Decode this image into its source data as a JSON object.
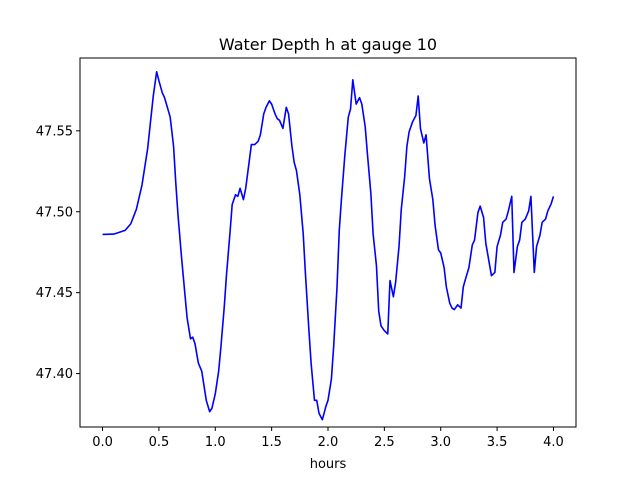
{
  "chart_data": {
    "type": "line",
    "title": "Water Depth h at gauge 10",
    "xlabel": "hours",
    "ylabel": "",
    "xlim": [
      -0.2,
      4.2
    ],
    "ylim": [
      47.367,
      47.595
    ],
    "xticks": [
      0.0,
      0.5,
      1.0,
      1.5,
      2.0,
      2.5,
      3.0,
      3.5,
      4.0
    ],
    "xtick_labels": [
      "0.0",
      "0.5",
      "1.0",
      "1.5",
      "2.0",
      "2.5",
      "3.0",
      "3.5",
      "4.0"
    ],
    "yticks": [
      47.4,
      47.45,
      47.5,
      47.55
    ],
    "ytick_labels": [
      "47.40",
      "47.45",
      "47.50",
      "47.55"
    ],
    "grid": false,
    "series": [
      {
        "color": "#0000ff",
        "x": [
          0.0,
          0.1,
          0.2,
          0.25,
          0.3,
          0.35,
          0.4,
          0.45,
          0.48,
          0.5,
          0.53,
          0.55,
          0.6,
          0.63,
          0.65,
          0.67,
          0.7,
          0.73,
          0.75,
          0.78,
          0.8,
          0.82,
          0.85,
          0.88,
          0.9,
          0.92,
          0.95,
          0.97,
          1.0,
          1.03,
          1.05,
          1.08,
          1.1,
          1.13,
          1.15,
          1.18,
          1.2,
          1.22,
          1.25,
          1.27,
          1.3,
          1.32,
          1.35,
          1.38,
          1.4,
          1.43,
          1.45,
          1.48,
          1.5,
          1.53,
          1.55,
          1.57,
          1.6,
          1.63,
          1.65,
          1.68,
          1.7,
          1.72,
          1.75,
          1.78,
          1.8,
          1.83,
          1.85,
          1.88,
          1.9,
          1.92,
          1.95,
          1.98,
          2.0,
          2.03,
          2.05,
          2.08,
          2.1,
          2.12,
          2.15,
          2.18,
          2.2,
          2.22,
          2.25,
          2.28,
          2.3,
          2.33,
          2.35,
          2.38,
          2.4,
          2.43,
          2.45,
          2.47,
          2.5,
          2.53,
          2.55,
          2.58,
          2.6,
          2.63,
          2.65,
          2.68,
          2.7,
          2.72,
          2.75,
          2.78,
          2.8,
          2.82,
          2.85,
          2.87,
          2.9,
          2.93,
          2.95,
          2.98,
          3.0,
          3.03,
          3.05,
          3.08,
          3.1,
          3.12,
          3.15,
          3.18,
          3.2,
          3.22,
          3.25,
          3.28,
          3.3,
          3.33,
          3.35,
          3.38,
          3.4,
          3.43,
          3.45,
          3.48,
          3.5,
          3.53,
          3.55,
          3.58,
          3.6,
          3.63,
          3.65,
          3.68,
          3.7,
          3.72,
          3.75,
          3.78,
          3.8,
          3.83,
          3.85,
          3.88,
          3.9,
          3.93,
          3.95,
          3.98,
          4.0
        ],
        "y": [
          47.486,
          47.4862,
          47.4885,
          47.4925,
          47.5015,
          47.5165,
          47.539,
          47.5715,
          47.5865,
          47.581,
          47.5735,
          47.5705,
          47.5585,
          47.5405,
          47.5175,
          47.4975,
          47.4725,
          47.4495,
          47.4345,
          47.4215,
          47.4225,
          47.4185,
          47.4065,
          47.4015,
          47.3925,
          47.3835,
          47.3765,
          47.3785,
          47.3875,
          47.4015,
          47.4165,
          47.4415,
          47.4615,
          47.4865,
          47.5045,
          47.5105,
          47.5095,
          47.5145,
          47.5075,
          47.5145,
          47.5305,
          47.5415,
          47.5415,
          47.5435,
          47.5475,
          47.5605,
          47.5645,
          47.5685,
          47.5665,
          47.5605,
          47.5575,
          47.5565,
          47.5515,
          47.5645,
          47.5605,
          47.5405,
          47.5305,
          47.5255,
          47.5105,
          47.4865,
          47.4615,
          47.4275,
          47.4065,
          47.3835,
          47.3835,
          47.3755,
          47.3715,
          47.3795,
          47.3835,
          47.3965,
          47.4165,
          47.4535,
          47.4885,
          47.5085,
          47.5355,
          47.5585,
          47.5635,
          47.5815,
          47.5665,
          47.5705,
          47.5665,
          47.5525,
          47.5355,
          47.5115,
          47.4865,
          47.4665,
          47.4385,
          47.4295,
          47.4265,
          47.4245,
          47.4575,
          47.4475,
          47.4565,
          47.4785,
          47.5015,
          47.5215,
          47.5405,
          47.5495,
          47.5555,
          47.5595,
          47.5715,
          47.5515,
          47.5425,
          47.5475,
          47.5205,
          47.5075,
          47.4915,
          47.4765,
          47.4745,
          47.4655,
          47.4535,
          47.4435,
          47.4405,
          47.4395,
          47.4425,
          47.4405,
          47.4535,
          47.4585,
          47.4655,
          47.4795,
          47.4825,
          47.4995,
          47.5035,
          47.4965,
          47.4805,
          47.4685,
          47.4605,
          47.4625,
          47.4785,
          47.4855,
          47.4935,
          47.4955,
          47.5005,
          47.5095,
          47.4625,
          47.4785,
          47.4825,
          47.4935,
          47.4955,
          47.5005,
          47.5095,
          47.4625,
          47.4785,
          47.4855,
          47.4935,
          47.4955,
          47.5005,
          47.505,
          47.5095
        ]
      }
    ]
  }
}
